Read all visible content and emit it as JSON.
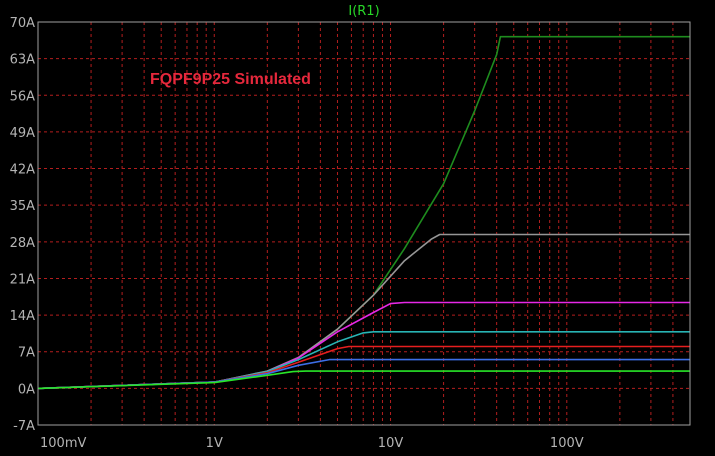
{
  "chart_data": {
    "type": "line",
    "title": "I(R1)",
    "annotation": "FQPF9P25 Simulated",
    "x_scale": "log",
    "xlim": [
      0.1,
      500
    ],
    "ylim": [
      -7,
      70
    ],
    "x_ticks": [
      {
        "value": 0.1,
        "label": "100mV"
      },
      {
        "value": 1,
        "label": "1V"
      },
      {
        "value": 10,
        "label": "10V"
      },
      {
        "value": 100,
        "label": "100V"
      }
    ],
    "y_ticks": [
      {
        "value": 70,
        "label": "70A"
      },
      {
        "value": 63,
        "label": "63A"
      },
      {
        "value": 56,
        "label": "56A"
      },
      {
        "value": 49,
        "label": "49A"
      },
      {
        "value": 42,
        "label": "42A"
      },
      {
        "value": 35,
        "label": "35A"
      },
      {
        "value": 28,
        "label": "28A"
      },
      {
        "value": 21,
        "label": "21A"
      },
      {
        "value": 14,
        "label": "14A"
      },
      {
        "value": 7,
        "label": "7A"
      },
      {
        "value": 0,
        "label": "0A"
      },
      {
        "value": -7,
        "label": "-7A"
      }
    ],
    "grid": true,
    "background": "#000000",
    "grid_color": "#b41e1e",
    "frame_color": "#a0a0a0",
    "title_color": "#28d728",
    "annotation_color": "#e6283c",
    "series": [
      {
        "color": "#1e8c1e",
        "x": [
          0.1,
          1,
          2,
          3,
          5,
          8,
          12,
          20,
          30,
          40,
          42,
          500
        ],
        "y": [
          0,
          1.2,
          3.3,
          5.9,
          11.3,
          17.8,
          26.7,
          39.1,
          53,
          63.8,
          67.2,
          67.2
        ]
      },
      {
        "color": "#969696",
        "x": [
          0.1,
          1,
          2,
          3,
          5,
          8,
          12,
          17,
          19,
          500
        ],
        "y": [
          0,
          1.2,
          3.3,
          5.9,
          11.3,
          17.8,
          24.4,
          28.5,
          29.4,
          29.4
        ]
      },
      {
        "color": "#e628e6",
        "x": [
          0.1,
          1,
          2,
          3,
          5,
          8,
          10,
          12,
          500
        ],
        "y": [
          0,
          1.2,
          3.2,
          5.8,
          10.8,
          14.5,
          16.2,
          16.4,
          16.4
        ]
      },
      {
        "color": "#28b4b4",
        "x": [
          0.1,
          1,
          2,
          3,
          5,
          7,
          8,
          500
        ],
        "y": [
          0,
          1.2,
          3.2,
          5.5,
          8.9,
          10.6,
          10.8,
          10.8
        ]
      },
      {
        "color": "#e61e1e",
        "x": [
          0.1,
          1,
          2,
          3,
          5,
          5.8,
          500
        ],
        "y": [
          0,
          1.2,
          3.0,
          5.0,
          7.6,
          8.0,
          8.0
        ]
      },
      {
        "color": "#3c6ee6",
        "x": [
          0.1,
          1,
          2,
          3,
          4.5,
          500
        ],
        "y": [
          0,
          1.2,
          2.8,
          4.4,
          5.5,
          5.5
        ]
      },
      {
        "color": "#28e628",
        "x": [
          0.1,
          1,
          2,
          2.8,
          3.3,
          500
        ],
        "y": [
          0,
          1.1,
          2.5,
          3.2,
          3.3,
          3.3
        ]
      }
    ]
  }
}
